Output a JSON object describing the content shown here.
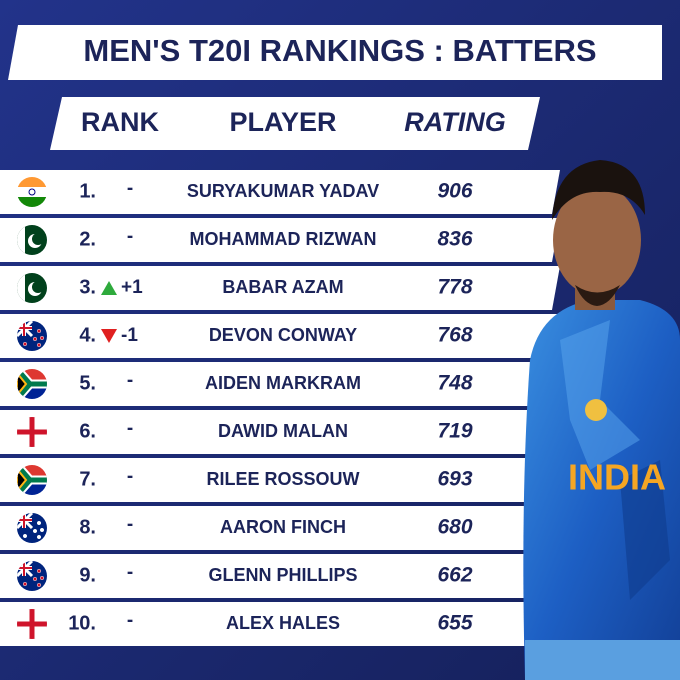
{
  "header": {
    "title": "MEN'S T20I RANKINGS : BATTERS"
  },
  "table": {
    "columns": [
      "RANK",
      "PLAYER",
      "RATING"
    ],
    "rows": [
      {
        "rank": "1.",
        "change": "-",
        "player": "SURYAKUMAR YADAV",
        "rating": "906"
      },
      {
        "rank": "2.",
        "change": "-",
        "player": "MOHAMMAD RIZWAN",
        "rating": "836"
      },
      {
        "rank": "3.",
        "change": "+1",
        "player": "BABAR AZAM",
        "rating": "778"
      },
      {
        "rank": "4.",
        "change": "-1",
        "player": "DEVON CONWAY",
        "rating": "768"
      },
      {
        "rank": "5.",
        "change": "-",
        "player": "AIDEN MARKRAM",
        "rating": "748"
      },
      {
        "rank": "6.",
        "change": "-",
        "player": "DAWID MALAN",
        "rating": "719"
      },
      {
        "rank": "7.",
        "change": "-",
        "player": "RILEE ROSSOUW",
        "rating": "693"
      },
      {
        "rank": "8.",
        "change": "-",
        "player": "AARON FINCH",
        "rating": "680"
      },
      {
        "rank": "9.",
        "change": "-",
        "player": "GLENN PHILLIPS",
        "rating": "662"
      },
      {
        "rank": "10.",
        "change": "-",
        "player": "ALEX HALES",
        "rating": "655"
      }
    ]
  }
}
